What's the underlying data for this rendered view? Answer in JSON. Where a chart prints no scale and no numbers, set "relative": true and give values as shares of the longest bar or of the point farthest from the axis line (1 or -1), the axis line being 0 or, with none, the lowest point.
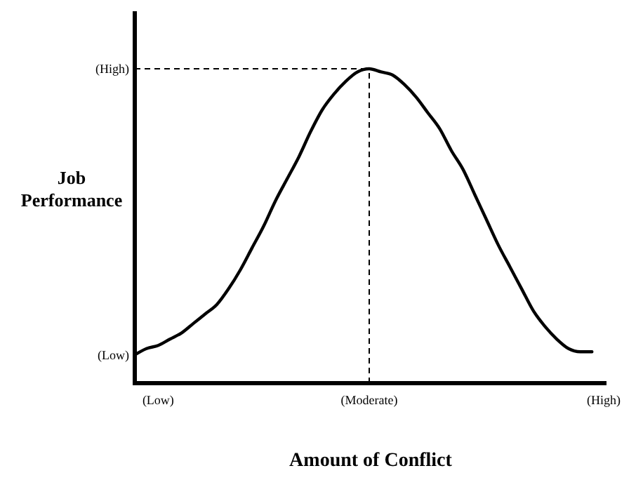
{
  "chart_data": {
    "type": "line",
    "xlabel": "Amount of Conflict",
    "ylabel": "Job Performance",
    "relative": true,
    "categories": [
      null,
      null,
      "(Low)",
      null,
      null,
      null,
      null,
      null,
      null,
      null,
      null,
      null,
      null,
      null,
      null,
      null,
      null,
      null,
      null,
      null,
      "(Moderate)",
      null,
      null,
      null,
      null,
      null,
      null,
      null,
      null,
      null,
      null,
      null,
      null,
      null,
      null,
      null,
      null,
      null,
      null,
      null,
      "(High)"
    ],
    "series": [
      {
        "color": "#000000",
        "values": [
          0.09,
          0.11,
          0.12,
          0.14,
          0.16,
          0.19,
          0.22,
          0.25,
          0.3,
          0.36,
          0.43,
          0.5,
          0.58,
          0.65,
          0.72,
          0.8,
          0.87,
          0.92,
          0.96,
          0.99,
          1,
          0.99,
          0.98,
          0.95,
          0.91,
          0.86,
          0.81,
          0.74,
          0.68,
          0.6,
          0.52,
          0.44,
          0.37,
          0.3,
          0.23,
          0.18,
          0.14,
          0.11,
          0.1,
          0.1,
          null
        ]
      }
    ],
    "annotations": [
      "(High)",
      "(Low)"
    ],
    "ref_lines": [
      {
        "axis": "y",
        "value": 1,
        "line_style": "dashed"
      },
      {
        "axis": "x",
        "value": "(Moderate)",
        "line_style": "dashed"
      }
    ],
    "grid": false,
    "marker": "none",
    "line_style": "solid"
  }
}
